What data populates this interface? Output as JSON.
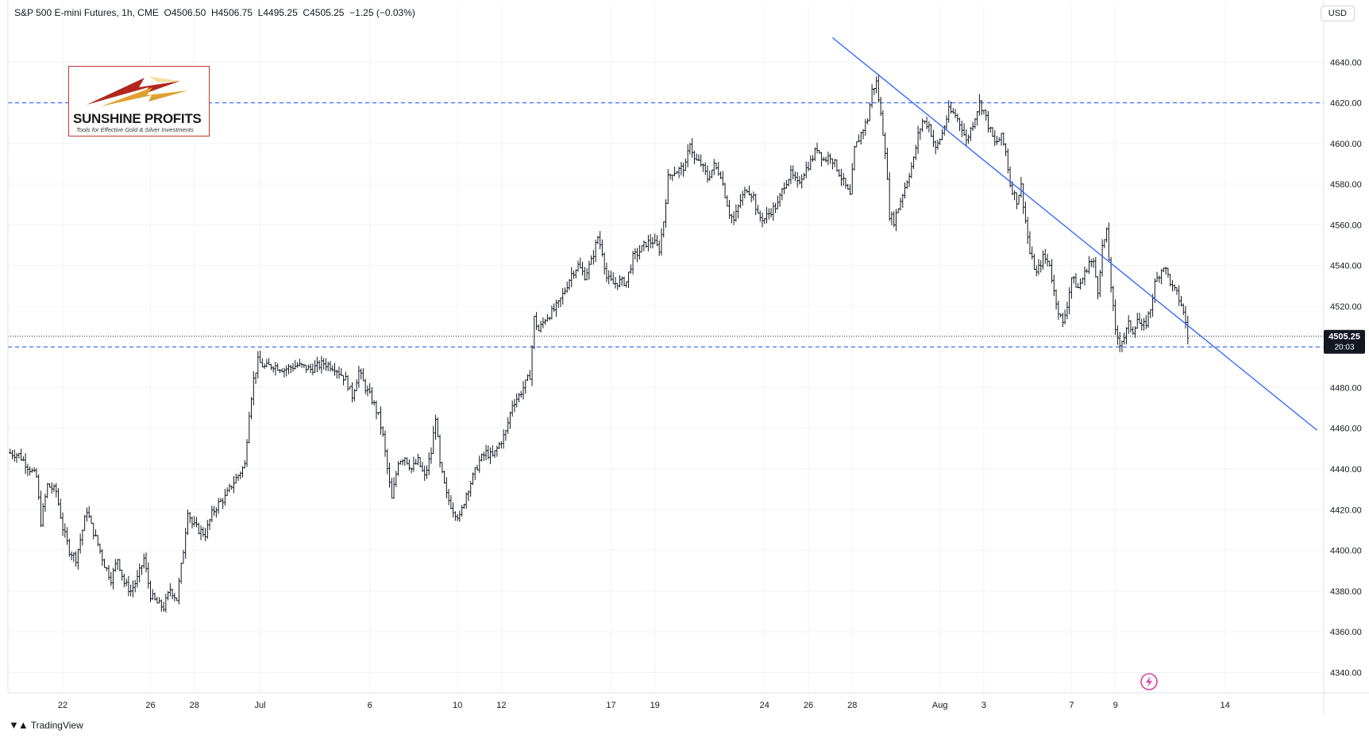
{
  "header": {
    "symbol": "S&P 500 E-mini Futures, 1h, CME",
    "open_label": "O",
    "open": "4506.50",
    "high_label": "H",
    "high": "4506.75",
    "low_label": "L",
    "low": "4495.25",
    "close_label": "C",
    "close": "4505.25",
    "change": "−1.25 (−0.03%)"
  },
  "currency": "USD",
  "footer": {
    "brand": "TradingView"
  },
  "logo": {
    "title": "SUNSHINE PROFITS",
    "tagline": "Tools for Effective Gold & Silver Investments"
  },
  "price_marker": {
    "price": "4505.25",
    "countdown": "20:03"
  },
  "colors": {
    "candles": "#131722",
    "trendline": "#2962ff",
    "levels": "#2962ff",
    "grid": "#f0f3fa",
    "price_marker_bg": "#131722"
  },
  "chart_data": {
    "type": "line",
    "title": "S&P 500 E-mini Futures, 1h, CME",
    "ylim": [
      4330,
      4660
    ],
    "y_ticks": [
      4340,
      4360,
      4380,
      4400,
      4420,
      4440,
      4460,
      4480,
      4500,
      4520,
      4540,
      4560,
      4580,
      4600,
      4620,
      4640
    ],
    "y_tick_labels": [
      "4340.00",
      "4360.00",
      "4380.00",
      "4400.00",
      "4420.00",
      "4440.00",
      "4460.00",
      "4480.00",
      "4500.00",
      "4520.00",
      "4540.00",
      "4560.00",
      "4580.00",
      "4600.00",
      "4620.00",
      "4640.00"
    ],
    "x_ticks": [
      {
        "label": "22",
        "day": 0
      },
      {
        "label": "26",
        "day": 4
      },
      {
        "label": "28",
        "day": 6
      },
      {
        "label": "Jul",
        "day": 9
      },
      {
        "label": "6",
        "day": 14
      },
      {
        "label": "10",
        "day": 18
      },
      {
        "label": "12",
        "day": 20
      },
      {
        "label": "17",
        "day": 25
      },
      {
        "label": "19",
        "day": 27
      },
      {
        "label": "24",
        "day": 32
      },
      {
        "label": "26",
        "day": 34
      },
      {
        "label": "28",
        "day": 36
      },
      {
        "label": "Aug",
        "day": 40
      },
      {
        "label": "3",
        "day": 42
      },
      {
        "label": "7",
        "day": 46
      },
      {
        "label": "9",
        "day": 48
      },
      {
        "label": "14",
        "day": 53
      }
    ],
    "x_day_range": [
      -2.5,
      57.5
    ],
    "series": [
      {
        "kind": "price",
        "points": [
          [
            -2.5,
            4448
          ],
          [
            -2.0,
            4447
          ],
          [
            -1.5,
            4440
          ],
          [
            -1.2,
            4436
          ],
          [
            -1.0,
            4414
          ],
          [
            -0.7,
            4432
          ],
          [
            -0.3,
            4429
          ],
          [
            0.0,
            4411
          ],
          [
            0.3,
            4400
          ],
          [
            0.6,
            4396
          ],
          [
            0.9,
            4410
          ],
          [
            1.1,
            4420
          ],
          [
            1.3,
            4412
          ],
          [
            1.6,
            4403
          ],
          [
            1.9,
            4393
          ],
          [
            2.2,
            4386
          ],
          [
            2.5,
            4396
          ],
          [
            2.8,
            4384
          ],
          [
            3.1,
            4380
          ],
          [
            3.4,
            4386
          ],
          [
            3.7,
            4396
          ],
          [
            4.0,
            4378
          ],
          [
            4.3,
            4374
          ],
          [
            4.6,
            4372
          ],
          [
            4.9,
            4381
          ],
          [
            5.2,
            4376
          ],
          [
            5.5,
            4400
          ],
          [
            5.7,
            4420
          ],
          [
            5.9,
            4413
          ],
          [
            6.2,
            4410
          ],
          [
            6.5,
            4408
          ],
          [
            6.8,
            4418
          ],
          [
            7.1,
            4423
          ],
          [
            7.4,
            4426
          ],
          [
            7.7,
            4432
          ],
          [
            8.0,
            4437
          ],
          [
            8.3,
            4442
          ],
          [
            8.5,
            4468
          ],
          [
            8.7,
            4484
          ],
          [
            8.9,
            4493
          ],
          [
            9.2,
            4490
          ],
          [
            9.6,
            4491
          ],
          [
            10.1,
            4489
          ],
          [
            10.7,
            4491
          ],
          [
            11.3,
            4489
          ],
          [
            11.9,
            4492
          ],
          [
            12.4,
            4490
          ],
          [
            12.9,
            4484
          ],
          [
            13.2,
            4476
          ],
          [
            13.5,
            4488
          ],
          [
            13.8,
            4480
          ],
          [
            14.1,
            4474
          ],
          [
            14.4,
            4466
          ],
          [
            14.6,
            4456
          ],
          [
            14.8,
            4440
          ],
          [
            15.0,
            4425
          ],
          [
            15.3,
            4444
          ],
          [
            15.6,
            4446
          ],
          [
            15.9,
            4440
          ],
          [
            16.2,
            4444
          ],
          [
            16.5,
            4436
          ],
          [
            16.8,
            4448
          ],
          [
            17.0,
            4466
          ],
          [
            17.2,
            4442
          ],
          [
            17.5,
            4427
          ],
          [
            17.8,
            4420
          ],
          [
            18.1,
            4416
          ],
          [
            18.4,
            4428
          ],
          [
            18.7,
            4436
          ],
          [
            19.0,
            4444
          ],
          [
            19.3,
            4448
          ],
          [
            19.6,
            4446
          ],
          [
            19.9,
            4452
          ],
          [
            20.2,
            4458
          ],
          [
            20.5,
            4472
          ],
          [
            20.8,
            4476
          ],
          [
            21.1,
            4482
          ],
          [
            21.3,
            4486
          ],
          [
            21.5,
            4514
          ],
          [
            21.7,
            4508
          ],
          [
            22.0,
            4514
          ],
          [
            22.3,
            4517
          ],
          [
            22.6,
            4521
          ],
          [
            22.9,
            4528
          ],
          [
            23.2,
            4536
          ],
          [
            23.5,
            4540
          ],
          [
            23.8,
            4535
          ],
          [
            24.1,
            4542
          ],
          [
            24.4,
            4554
          ],
          [
            24.6,
            4547
          ],
          [
            24.8,
            4534
          ],
          [
            25.1,
            4531
          ],
          [
            25.4,
            4532
          ],
          [
            25.7,
            4532
          ],
          [
            26.0,
            4544
          ],
          [
            26.3,
            4547
          ],
          [
            26.6,
            4551
          ],
          [
            26.9,
            4552
          ],
          [
            27.2,
            4548
          ],
          [
            27.4,
            4562
          ],
          [
            27.6,
            4583
          ],
          [
            27.8,
            4586
          ],
          [
            28.1,
            4587
          ],
          [
            28.4,
            4589
          ],
          [
            28.6,
            4601
          ],
          [
            28.8,
            4592
          ],
          [
            29.1,
            4590
          ],
          [
            29.4,
            4583
          ],
          [
            29.7,
            4589
          ],
          [
            30.0,
            4585
          ],
          [
            30.2,
            4575
          ],
          [
            30.4,
            4566
          ],
          [
            30.6,
            4562
          ],
          [
            30.9,
            4572
          ],
          [
            31.2,
            4578
          ],
          [
            31.5,
            4574
          ],
          [
            31.7,
            4564
          ],
          [
            32.0,
            4563
          ],
          [
            32.3,
            4567
          ],
          [
            32.6,
            4570
          ],
          [
            32.9,
            4580
          ],
          [
            33.2,
            4585
          ],
          [
            33.5,
            4580
          ],
          [
            33.8,
            4586
          ],
          [
            34.1,
            4591
          ],
          [
            34.4,
            4598
          ],
          [
            34.7,
            4592
          ],
          [
            35.0,
            4594
          ],
          [
            35.3,
            4588
          ],
          [
            35.6,
            4581
          ],
          [
            35.9,
            4574
          ],
          [
            36.1,
            4597
          ],
          [
            36.4,
            4605
          ],
          [
            36.7,
            4612
          ],
          [
            36.9,
            4626
          ],
          [
            37.1,
            4630
          ],
          [
            37.3,
            4614
          ],
          [
            37.5,
            4597
          ],
          [
            37.7,
            4565
          ],
          [
            37.9,
            4562
          ],
          [
            38.2,
            4572
          ],
          [
            38.5,
            4582
          ],
          [
            38.8,
            4592
          ],
          [
            39.0,
            4604
          ],
          [
            39.2,
            4611
          ],
          [
            39.5,
            4609
          ],
          [
            39.8,
            4597
          ],
          [
            40.1,
            4605
          ],
          [
            40.4,
            4616
          ],
          [
            40.7,
            4614
          ],
          [
            41.0,
            4608
          ],
          [
            41.2,
            4601
          ],
          [
            41.5,
            4610
          ],
          [
            41.8,
            4620
          ],
          [
            42.0,
            4616
          ],
          [
            42.2,
            4609
          ],
          [
            42.5,
            4600
          ],
          [
            42.8,
            4603
          ],
          [
            43.0,
            4596
          ],
          [
            43.2,
            4580
          ],
          [
            43.5,
            4572
          ],
          [
            43.7,
            4579
          ],
          [
            43.9,
            4562
          ],
          [
            44.1,
            4546
          ],
          [
            44.4,
            4536
          ],
          [
            44.7,
            4544
          ],
          [
            45.0,
            4541
          ],
          [
            45.2,
            4527
          ],
          [
            45.4,
            4518
          ],
          [
            45.6,
            4511
          ],
          [
            45.8,
            4521
          ],
          [
            46.0,
            4534
          ],
          [
            46.3,
            4529
          ],
          [
            46.6,
            4536
          ],
          [
            46.8,
            4542
          ],
          [
            47.0,
            4541
          ],
          [
            47.2,
            4528
          ],
          [
            47.4,
            4549
          ],
          [
            47.6,
            4556
          ],
          [
            47.8,
            4530
          ],
          [
            48.0,
            4507
          ],
          [
            48.2,
            4502
          ],
          [
            48.4,
            4505
          ],
          [
            48.6,
            4511
          ],
          [
            48.8,
            4508
          ],
          [
            49.0,
            4514
          ],
          [
            49.2,
            4509
          ],
          [
            49.4,
            4512
          ],
          [
            49.6,
            4519
          ],
          [
            49.8,
            4531
          ],
          [
            50.0,
            4536
          ],
          [
            50.2,
            4540
          ],
          [
            50.4,
            4535
          ],
          [
            50.6,
            4529
          ],
          [
            50.8,
            4526
          ],
          [
            51.0,
            4521
          ],
          [
            51.2,
            4512
          ],
          [
            51.3,
            4505
          ]
        ]
      },
      {
        "kind": "trendline",
        "points": [
          [
            35.1,
            4652
          ],
          [
            57.2,
            4459
          ]
        ]
      },
      {
        "kind": "level",
        "points": [
          [
            -2.5,
            4620
          ],
          [
            57.5,
            4620
          ]
        ]
      },
      {
        "kind": "level",
        "points": [
          [
            -2.5,
            4500
          ],
          [
            57.5,
            4500
          ]
        ]
      },
      {
        "kind": "current-price",
        "points": [
          [
            -2.5,
            4505.25
          ],
          [
            57.5,
            4505.25
          ]
        ]
      }
    ],
    "grid": true,
    "legend": "none"
  }
}
